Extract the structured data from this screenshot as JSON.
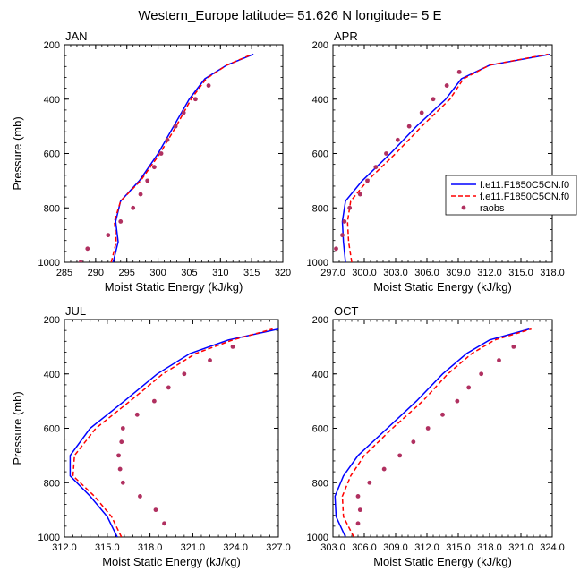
{
  "figure": {
    "title": "Western_Europe  latitude= 51.626 N longitude= 5 E"
  },
  "legend": {
    "entries": [
      {
        "label": "f.e11.F1850C5CN.f0",
        "color": "#0000ff",
        "style": "solid",
        "marker": "none"
      },
      {
        "label": "f.e11.F1850C5CN.f0",
        "color": "#ff0000",
        "style": "dashed",
        "marker": "none"
      },
      {
        "label": "raobs",
        "color": "#b03060",
        "style": "none",
        "marker": "dot"
      }
    ],
    "placement": "right of APR panel"
  },
  "chart_data": [
    {
      "type": "line",
      "title": "JAN",
      "xlabel": "Moist Static Energy (kJ/kg)",
      "ylabel": "Pressure (mb)",
      "xlim": [
        285,
        320
      ],
      "ylim": [
        1000,
        200
      ],
      "xticks": [
        285,
        290,
        295,
        300,
        305,
        310,
        315,
        320
      ],
      "xtick_labels": [
        "285",
        "290",
        "295",
        "300",
        "305",
        "310",
        "315",
        "320"
      ],
      "yticks": [
        200,
        400,
        600,
        800,
        1000
      ],
      "ytick_labels": [
        "200",
        "400",
        "600",
        "800",
        "1000"
      ],
      "series": [
        {
          "name": "f.e11.F1850C5CN.f0",
          "color": "#0000ff",
          "style": "solid",
          "x": [
            292.8,
            293.6,
            293.2,
            294.0,
            297.0,
            300.0,
            302.5,
            305.0,
            307.5,
            311.0,
            315.3
          ],
          "y": [
            1000,
            925,
            850,
            775,
            700,
            600,
            500,
            400,
            325,
            275,
            235
          ]
        },
        {
          "name": "f.e11.F1850C5CN.f0",
          "color": "#ff0000",
          "style": "dashed",
          "x": [
            292.5,
            293.3,
            293.0,
            294.0,
            297.2,
            300.3,
            302.9,
            305.3,
            307.7,
            311.0,
            315.1
          ],
          "y": [
            1000,
            925,
            850,
            775,
            700,
            600,
            500,
            400,
            325,
            275,
            235
          ]
        },
        {
          "name": "raobs",
          "color": "#b03060",
          "style": "markers",
          "x": [
            287.6,
            288.7,
            292.0,
            294.0,
            296.0,
            297.2,
            298.3,
            299.4,
            300.5,
            301.5,
            302.8,
            304.1,
            306.0,
            308.1
          ],
          "y": [
            1000,
            950,
            900,
            850,
            800,
            750,
            700,
            650,
            600,
            550,
            500,
            450,
            400,
            350
          ]
        }
      ]
    },
    {
      "type": "line",
      "title": "APR",
      "xlabel": "Moist Static Energy (kJ/kg)",
      "ylabel": "",
      "xlim": [
        297,
        318
      ],
      "ylim": [
        1000,
        200
      ],
      "xticks": [
        297,
        300,
        303,
        306,
        309,
        312,
        315,
        318
      ],
      "xtick_labels": [
        "297.0",
        "300.0",
        "303.0",
        "306.0",
        "309.0",
        "312.0",
        "315.0",
        "318.0"
      ],
      "yticks": [
        200,
        400,
        600,
        800,
        1000
      ],
      "ytick_labels": [
        "200",
        "400",
        "600",
        "800",
        "1000"
      ],
      "series": [
        {
          "name": "f.e11.F1850C5CN.f0",
          "color": "#0000ff",
          "style": "solid",
          "x": [
            298.2,
            298.0,
            297.9,
            298.2,
            299.8,
            302.5,
            305.0,
            307.8,
            309.3,
            312.0,
            317.8
          ],
          "y": [
            1000,
            925,
            850,
            775,
            700,
            600,
            500,
            400,
            325,
            275,
            235
          ]
        },
        {
          "name": "f.e11.F1850C5CN.f0",
          "color": "#ff0000",
          "style": "dashed",
          "x": [
            298.8,
            298.5,
            298.4,
            298.7,
            300.3,
            303.0,
            305.5,
            308.2,
            309.5,
            312.0,
            317.6
          ],
          "y": [
            1000,
            925,
            850,
            775,
            700,
            600,
            500,
            400,
            325,
            275,
            235
          ]
        },
        {
          "name": "raobs",
          "color": "#b03060",
          "style": "markers",
          "x": [
            297.3,
            297.9,
            298.1,
            298.6,
            299.6,
            300.3,
            301.1,
            302.1,
            303.2,
            304.3,
            305.5,
            306.6,
            307.9,
            309.1
          ],
          "y": [
            950,
            900,
            850,
            800,
            750,
            700,
            650,
            600,
            550,
            500,
            450,
            400,
            350,
            300
          ]
        }
      ]
    },
    {
      "type": "line",
      "title": "JUL",
      "xlabel": "Moist Static Energy (kJ/kg)",
      "ylabel": "Pressure (mb)",
      "xlim": [
        312,
        327
      ],
      "ylim": [
        1000,
        200
      ],
      "xticks": [
        312,
        315,
        318,
        321,
        324,
        327
      ],
      "xtick_labels": [
        "312.0",
        "315.0",
        "318.0",
        "321.0",
        "324.0",
        "327.0"
      ],
      "yticks": [
        200,
        400,
        600,
        800,
        1000
      ],
      "ytick_labels": [
        "200",
        "400",
        "600",
        "800",
        "1000"
      ],
      "series": [
        {
          "name": "f.e11.F1850C5CN.f0",
          "color": "#0000ff",
          "style": "solid",
          "x": [
            315.7,
            315.0,
            313.8,
            312.4,
            312.4,
            313.8,
            316.2,
            318.5,
            320.8,
            323.5,
            327.0
          ],
          "y": [
            1000,
            925,
            850,
            775,
            700,
            600,
            500,
            400,
            325,
            275,
            235
          ]
        },
        {
          "name": "f.e11.F1850C5CN.f0",
          "color": "#ff0000",
          "style": "dashed",
          "x": [
            316.0,
            315.3,
            314.1,
            312.6,
            312.7,
            314.2,
            316.6,
            318.9,
            321.2,
            323.8,
            326.6
          ],
          "y": [
            1000,
            925,
            850,
            775,
            700,
            600,
            500,
            400,
            325,
            275,
            235
          ]
        },
        {
          "name": "raobs",
          "color": "#b03060",
          "style": "markers",
          "x": [
            319.0,
            318.4,
            317.3,
            316.1,
            315.9,
            315.8,
            316.0,
            316.1,
            317.1,
            318.3,
            319.3,
            320.4,
            322.2,
            323.8
          ],
          "y": [
            950,
            900,
            850,
            800,
            750,
            700,
            650,
            600,
            550,
            500,
            450,
            400,
            350,
            300
          ]
        }
      ]
    },
    {
      "type": "line",
      "title": "OCT",
      "xlabel": "Moist Static Energy (kJ/kg)",
      "ylabel": "",
      "xlim": [
        303,
        324
      ],
      "ylim": [
        1000,
        200
      ],
      "xticks": [
        303,
        306,
        309,
        312,
        315,
        318,
        321,
        324
      ],
      "xtick_labels": [
        "303.0",
        "306.0",
        "309.0",
        "312.0",
        "315.0",
        "318.0",
        "321.0",
        "324.0"
      ],
      "yticks": [
        200,
        400,
        600,
        800,
        1000
      ],
      "ytick_labels": [
        "200",
        "400",
        "600",
        "800",
        "1000"
      ],
      "series": [
        {
          "name": "f.e11.F1850C5CN.f0",
          "color": "#0000ff",
          "style": "solid",
          "x": [
            304.2,
            303.3,
            303.2,
            304.0,
            305.4,
            308.2,
            311.0,
            313.5,
            315.8,
            318.0,
            321.8
          ],
          "y": [
            1000,
            925,
            850,
            775,
            700,
            600,
            500,
            400,
            325,
            275,
            235
          ]
        },
        {
          "name": "f.e11.F1850C5CN.f0",
          "color": "#ff0000",
          "style": "dashed",
          "x": [
            305.0,
            304.0,
            303.9,
            304.7,
            306.0,
            308.7,
            311.6,
            314.0,
            316.3,
            318.5,
            322.0
          ],
          "y": [
            1000,
            925,
            850,
            775,
            700,
            600,
            500,
            400,
            325,
            275,
            235
          ]
        },
        {
          "name": "raobs",
          "color": "#b03060",
          "style": "markers",
          "x": [
            305.4,
            305.6,
            305.4,
            306.5,
            307.9,
            309.4,
            310.7,
            312.1,
            313.5,
            314.9,
            316.0,
            317.2,
            318.9,
            320.3
          ],
          "y": [
            950,
            900,
            850,
            800,
            750,
            700,
            650,
            600,
            550,
            500,
            450,
            400,
            350,
            300
          ]
        }
      ]
    }
  ]
}
